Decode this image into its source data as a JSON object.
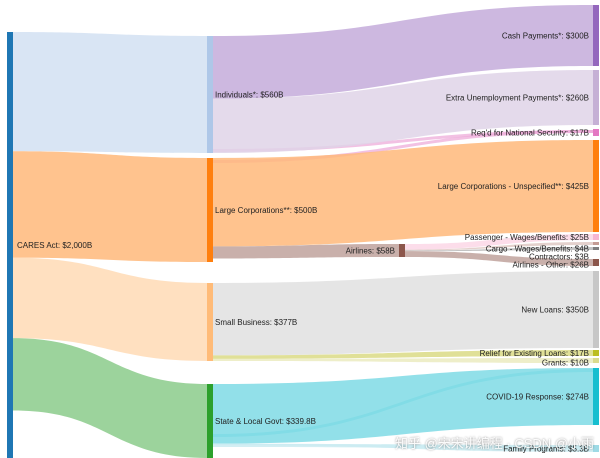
{
  "chart_data": {
    "type": "sankey",
    "units": "B",
    "nodes": [
      {
        "id": "cares",
        "label": "CARES Act: $2,000B",
        "value": 2000,
        "color": "#1f77b4"
      },
      {
        "id": "ind",
        "label": "Individuals*: $560B",
        "value": 560,
        "color": "#aec7e8"
      },
      {
        "id": "corp",
        "label": "Large Corporations**: $500B",
        "value": 500,
        "color": "#ff7f0e"
      },
      {
        "id": "small",
        "label": "Small Business: $377B",
        "value": 377,
        "color": "#ffbb78"
      },
      {
        "id": "state",
        "label": "State & Local Govt: $339.8B",
        "value": 339.8,
        "color": "#2ca02c"
      },
      {
        "id": "air",
        "label": "Airlines: $58B",
        "value": 58,
        "color": "#8c564b"
      },
      {
        "id": "cash",
        "label": "Cash Payments*: $300B",
        "value": 300,
        "color": "#9467bd"
      },
      {
        "id": "unemp",
        "label": "Extra Unemployment Payments*: $260B",
        "value": 260,
        "color": "#c5b0d5"
      },
      {
        "id": "natsec",
        "label": "Req'd for National Security: $17B",
        "value": 17,
        "color": "#e377c2"
      },
      {
        "id": "corpun",
        "label": "Large Corporations - Unspecified**: $425B",
        "value": 425,
        "color": "#ff7f0e"
      },
      {
        "id": "pass",
        "label": "Passenger - Wages/Benefits: $25B",
        "value": 25,
        "color": "#f7b6d2"
      },
      {
        "id": "cargo",
        "label": "Cargo - Wages/Benefits: $4B",
        "value": 4,
        "color": "#c49c94"
      },
      {
        "id": "contr",
        "label": "Contractors: $3B",
        "value": 3,
        "color": "#7f7f7f"
      },
      {
        "id": "airoth",
        "label": "Airlines - Other: $26B",
        "value": 26,
        "color": "#8c564b"
      },
      {
        "id": "loans",
        "label": "New Loans: $350B",
        "value": 350,
        "color": "#c7c7c7"
      },
      {
        "id": "relief",
        "label": "Relief for Existing Loans: $17B",
        "value": 17,
        "color": "#bcbd22"
      },
      {
        "id": "grants",
        "label": "Grants: $10B",
        "value": 10,
        "color": "#dbdb8d"
      },
      {
        "id": "covid",
        "label": "COVID-19 Response: $274B",
        "value": 274,
        "color": "#17becf"
      },
      {
        "id": "fam",
        "label": "Family Programs: $5.3B",
        "value": 5.3,
        "color": "#9edae5"
      }
    ],
    "links": [
      {
        "source": "cares",
        "target": "ind",
        "value": 560
      },
      {
        "source": "cares",
        "target": "corp",
        "value": 500
      },
      {
        "source": "cares",
        "target": "small",
        "value": 377
      },
      {
        "source": "cares",
        "target": "state",
        "value": 339.8
      },
      {
        "source": "ind",
        "target": "cash",
        "value": 300
      },
      {
        "source": "ind",
        "target": "unemp",
        "value": 260
      },
      {
        "source": "corp",
        "target": "corpun",
        "value": 425
      },
      {
        "source": "corp",
        "target": "air",
        "value": 58
      },
      {
        "source": "air",
        "target": "pass",
        "value": 25
      },
      {
        "source": "air",
        "target": "cargo",
        "value": 4
      },
      {
        "source": "air",
        "target": "contr",
        "value": 3
      },
      {
        "source": "air",
        "target": "airoth",
        "value": 26
      },
      {
        "source": "small",
        "target": "loans",
        "value": 350
      },
      {
        "source": "small",
        "target": "relief",
        "value": 17
      },
      {
        "source": "small",
        "target": "grants",
        "value": 10
      },
      {
        "source": "state",
        "target": "covid",
        "value": 274
      },
      {
        "source": "state",
        "target": "fam",
        "value": 5.3
      }
    ]
  },
  "watermark": "知乎 @宋宋讲编程 · CSDN @小雨"
}
